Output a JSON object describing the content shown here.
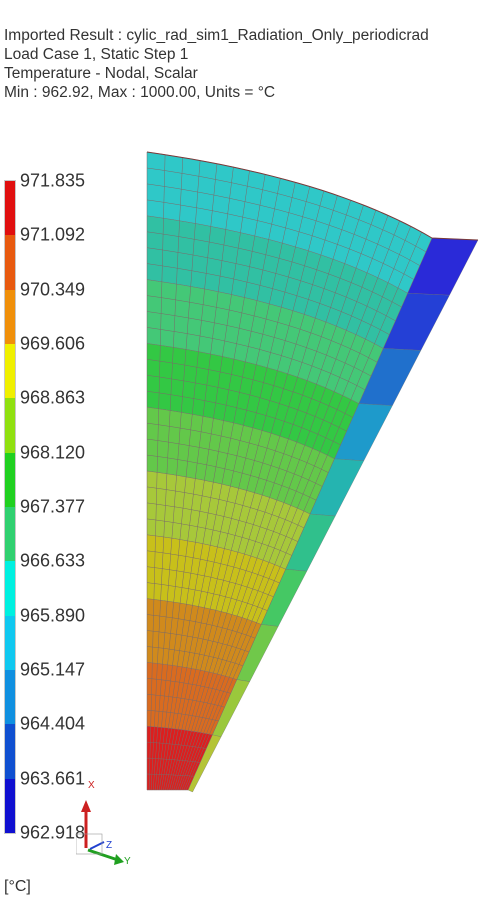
{
  "header": {
    "line1": "Imported Result : cylic_rad_sim1_Radiation_Only_periodicrad",
    "line2": "Load Case 1, Static Step 1",
    "line3": "Temperature - Nodal, Scalar",
    "line4": "Min : 962.92, Max : 1000.00, Units = °C"
  },
  "legend": {
    "labels": [
      "971.835",
      "971.092",
      "970.349",
      "969.606",
      "968.863",
      "968.120",
      "967.377",
      "966.633",
      "965.890",
      "965.147",
      "964.404",
      "963.661",
      "962.918"
    ],
    "colors": [
      "#e01010",
      "#e85a10",
      "#f0900a",
      "#f0f000",
      "#90e010",
      "#20d020",
      "#30d070",
      "#00f0e0",
      "#10c8f0",
      "#1090e0",
      "#1050d0",
      "#1010d0"
    ],
    "unit": "[°C]"
  },
  "triad": {
    "x": "X",
    "y": "Y",
    "z": "Z"
  },
  "model": {
    "bands": [
      "#dd1e1e",
      "#d96b1f",
      "#d08a1c",
      "#c8c01a",
      "#a7c83a",
      "#63c84a",
      "#33c844",
      "#44c877",
      "#31c0a3",
      "#2fc8c8"
    ],
    "side": [
      "#2a2ad8",
      "#2440d6",
      "#2070cc",
      "#1e9acb",
      "#25b4b0",
      "#30c08c",
      "#45c864",
      "#70c84a",
      "#9ac83c",
      "#b4c436"
    ]
  }
}
